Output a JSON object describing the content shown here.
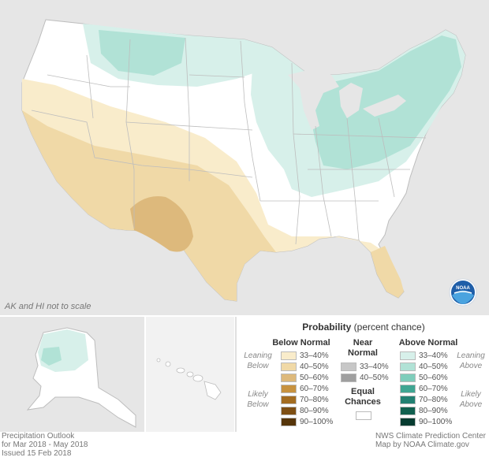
{
  "map": {
    "scale_note": "AK and HI not to scale"
  },
  "legend": {
    "title_bold": "Probability",
    "title_rest": " (percent chance)",
    "below_normal": {
      "header": "Below Normal",
      "leaning_label": "Leaning Below",
      "likely_label": "Likely Below",
      "items": [
        {
          "label": "33–40%",
          "color": "#f9eccb"
        },
        {
          "label": "40–50%",
          "color": "#f0d9a7"
        },
        {
          "label": "50–60%",
          "color": "#ddb97c"
        },
        {
          "label": "60–70%",
          "color": "#c7923f"
        },
        {
          "label": "70–80%",
          "color": "#a36c20"
        },
        {
          "label": "80–90%",
          "color": "#7e4f14"
        },
        {
          "label": "90–100%",
          "color": "#56350a"
        }
      ]
    },
    "near_normal": {
      "header": "Near Normal",
      "items": [
        {
          "label": "33–40%",
          "color": "#c7c7c7"
        },
        {
          "label": "40–50%",
          "color": "#9f9f9f"
        }
      ]
    },
    "equal_chances": {
      "label": "Equal Chances",
      "color": "#ffffff"
    },
    "above_normal": {
      "header": "Above Normal",
      "leaning_label": "Leaning Above",
      "likely_label": "Likely Above",
      "items": [
        {
          "label": "33–40%",
          "color": "#d7f0ea"
        },
        {
          "label": "40–50%",
          "color": "#b1e2d6"
        },
        {
          "label": "50–60%",
          "color": "#7fcdbb"
        },
        {
          "label": "60–70%",
          "color": "#3fa592"
        },
        {
          "label": "70–80%",
          "color": "#228072"
        },
        {
          "label": "80–90%",
          "color": "#11604f"
        },
        {
          "label": "90–100%",
          "color": "#063b30"
        }
      ]
    }
  },
  "footer": {
    "left_line1": "Precipitation Outlook",
    "left_line2": "for Mar 2018 - May 2018",
    "left_line3": "Issued 15 Feb 2018",
    "right_line1": "NWS Climate Prediction Center",
    "right_line2": "Map by NOAA Climate.gov"
  },
  "logo": {
    "text": "NOAA",
    "icon": "noaa-logo-icon"
  }
}
